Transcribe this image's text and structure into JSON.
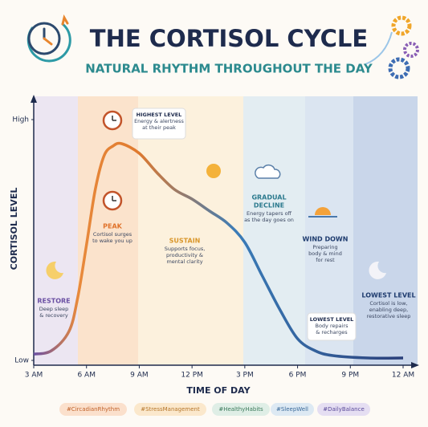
{
  "chart_data": {
    "type": "line",
    "title": "THE CORTISOL CYCLE",
    "subtitle": "NATURAL RHYTHM THROUGHOUT THE DAY",
    "xlabel": "TIME OF DAY",
    "ylabel": "CORTISOL LEVEL",
    "x": [
      3,
      4,
      5,
      5.5,
      6,
      6.5,
      7,
      7.5,
      8,
      9,
      10,
      11,
      12,
      13,
      14,
      15,
      16,
      17,
      18,
      19,
      20,
      22,
      24
    ],
    "values": [
      2.6,
      4,
      12,
      26,
      48,
      71,
      85,
      89,
      90,
      86,
      78,
      71,
      67,
      62,
      57,
      49,
      35,
      21,
      9,
      4,
      2,
      1,
      1
    ],
    "xlim": [
      3,
      24
    ],
    "xticks": [
      {
        "value": 3,
        "label": "3 AM"
      },
      {
        "value": 6,
        "label": "6 AM"
      },
      {
        "value": 9,
        "label": "9 AM"
      },
      {
        "value": 12,
        "label": "12 PM"
      },
      {
        "value": 15,
        "label": "3 PM"
      },
      {
        "value": 18,
        "label": "6 PM"
      },
      {
        "value": 21,
        "label": "9 PM"
      },
      {
        "value": 24,
        "label": "12 AM"
      }
    ],
    "ylim": [
      -2,
      108
    ],
    "yticks": [
      {
        "value": 0,
        "label": "Low"
      },
      {
        "value": 100,
        "label": "High"
      }
    ],
    "annotations": [
      {
        "title": [
          "HIGHEST LEVEL"
        ],
        "lines": [
          "Energy & alertness",
          "at their peak"
        ]
      },
      {
        "title": [
          "PEAK"
        ],
        "lines": [
          "Cortisol surges",
          "to wake you up"
        ]
      },
      {
        "title": [
          "RESTORE"
        ],
        "lines": [
          "Deep sleep",
          "& recovery"
        ]
      },
      {
        "title": [
          "SUSTAIN"
        ],
        "lines": [
          "Supports focus,",
          "productivity &",
          "mental clarity"
        ]
      },
      {
        "title": [
          "GRADUAL",
          "DECLINE"
        ],
        "lines": [
          "Energy tapers off",
          "as the day goes on"
        ]
      },
      {
        "title": [
          "WIND DOWN"
        ],
        "lines": [
          "Preparing",
          "body & mind",
          "for rest"
        ]
      },
      {
        "title": [
          "LOWEST LEVEL"
        ],
        "lines": [
          "Body repairs",
          "& recharges"
        ]
      },
      {
        "title": [
          "LOWEST LEVEL"
        ],
        "lines": [
          "Cortisol is low,",
          "enabling deep,",
          "restorative sleep"
        ]
      }
    ],
    "tags": [
      "#CircadianRhythm",
      "#StressManagement",
      "#HealthyHabits",
      "#SleepWell",
      "#DailyBalance"
    ]
  }
}
